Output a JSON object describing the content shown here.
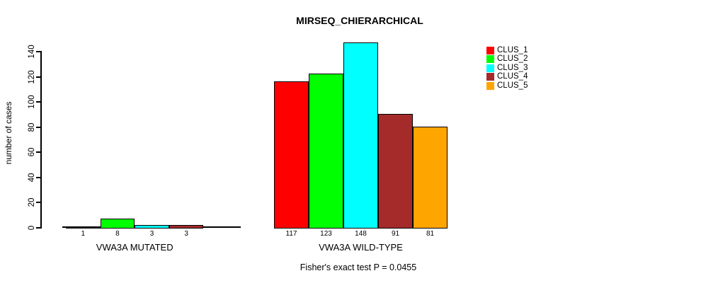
{
  "title": "MIRSEQ_CHIERARCHICAL",
  "y_axis": {
    "label": "number of cases",
    "ticks": [
      0,
      20,
      40,
      60,
      80,
      100,
      120,
      140
    ]
  },
  "groups": [
    {
      "label": "VWA3A MUTATED",
      "bars": [
        {
          "cluster": "CLUS_1",
          "value": 1,
          "color": "#FF0000"
        },
        {
          "cluster": "CLUS_2",
          "value": 8,
          "color": "#00FF00"
        },
        {
          "cluster": "CLUS_3",
          "value": 3,
          "color": "#00FFFF"
        },
        {
          "cluster": "CLUS_4",
          "value": 3,
          "color": "#A52A2A"
        }
      ]
    },
    {
      "label": "VWA3A WILD-TYPE",
      "bars": [
        {
          "cluster": "CLUS_1",
          "value": 117,
          "color": "#FF0000"
        },
        {
          "cluster": "CLUS_2",
          "value": 123,
          "color": "#00FF00"
        },
        {
          "cluster": "CLUS_3",
          "value": 148,
          "color": "#00FFFF"
        },
        {
          "cluster": "CLUS_4",
          "value": 91,
          "color": "#A52A2A"
        },
        {
          "cluster": "CLUS_5",
          "value": 81,
          "color": "#FFA500"
        }
      ]
    }
  ],
  "legend": {
    "items": [
      {
        "label": "CLUS_1",
        "color": "#FF0000"
      },
      {
        "label": "CLUS_2",
        "color": "#00FF00"
      },
      {
        "label": "CLUS_3",
        "color": "#00FFFF"
      },
      {
        "label": "CLUS_4",
        "color": "#A52A2A"
      },
      {
        "label": "CLUS_5",
        "color": "#FFA500"
      }
    ]
  },
  "footnote": "Fisher's exact test P = 0.0455",
  "chart_data": {
    "type": "bar",
    "title": "MIRSEQ_CHIERARCHICAL",
    "xlabel": "",
    "ylabel": "number of cases",
    "ylim": [
      0,
      148
    ],
    "yticks": [
      0,
      20,
      40,
      60,
      80,
      100,
      120,
      140
    ],
    "grid": false,
    "legend_position": "top-right",
    "categories": [
      "VWA3A MUTATED",
      "VWA3A WILD-TYPE"
    ],
    "series": [
      {
        "name": "CLUS_1",
        "color": "#FF0000",
        "values": [
          1,
          117
        ]
      },
      {
        "name": "CLUS_2",
        "color": "#00FF00",
        "values": [
          8,
          123
        ]
      },
      {
        "name": "CLUS_3",
        "color": "#00FFFF",
        "values": [
          3,
          148
        ]
      },
      {
        "name": "CLUS_4",
        "color": "#A52A2A",
        "values": [
          3,
          91
        ]
      },
      {
        "name": "CLUS_5",
        "color": "#FFA500",
        "values": [
          null,
          81
        ]
      }
    ],
    "bar_value_labels": [
      [
        1,
        8,
        3,
        3
      ],
      [
        117,
        123,
        148,
        91,
        81
      ]
    ],
    "annotation": "Fisher's exact test P = 0.0455"
  }
}
